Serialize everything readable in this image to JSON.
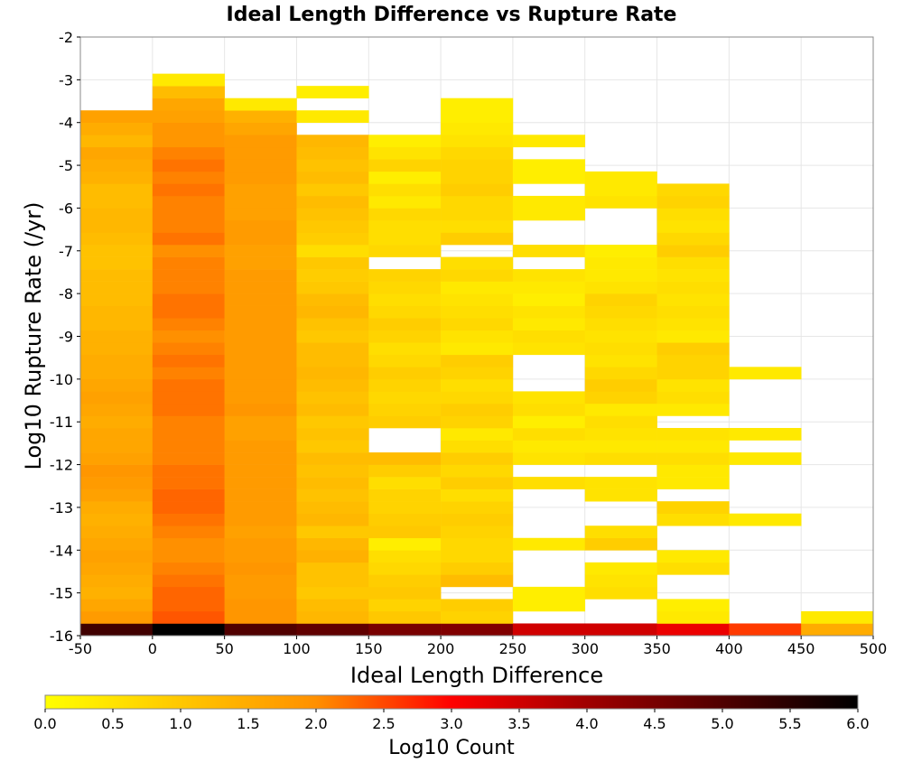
{
  "chart_data": {
    "type": "heatmap",
    "title": "Ideal Length Difference vs Rupture Rate",
    "xlabel": "Ideal Length Difference",
    "ylabel": "Log10 Rupture Rate (/yr)",
    "xlim": [
      -50,
      500
    ],
    "ylim": [
      -16,
      -2
    ],
    "x_ticks": [
      "-50",
      "0",
      "50",
      "100",
      "150",
      "200",
      "250",
      "300",
      "350",
      "400",
      "450",
      "500"
    ],
    "y_ticks": [
      "-2",
      "-3",
      "-4",
      "-5",
      "-6",
      "-7",
      "-8",
      "-9",
      "-10",
      "-11",
      "-12",
      "-13",
      "-14",
      "-15",
      "-16"
    ],
    "x_bin_width": 50,
    "y_bin_height": 0.2857,
    "grid": true,
    "colorbar": {
      "label": "Log10 Count",
      "range": [
        0,
        6
      ],
      "ticks": [
        "0.0",
        "0.5",
        "1.0",
        "1.5",
        "2.0",
        "2.5",
        "3.0",
        "3.5",
        "4.0",
        "4.5",
        "5.0",
        "5.5",
        "6.0"
      ],
      "placement": "bottom"
    },
    "columns": [
      {
        "x": -25,
        "y_start": -16,
        "values": [
          5.2,
          1.8,
          1.6,
          1.4,
          1.5,
          1.6,
          1.7,
          1.6,
          1.5,
          1.4,
          1.5,
          1.7,
          1.8,
          1.9,
          1.7,
          1.6,
          1.6,
          1.5,
          1.6,
          1.7,
          1.6,
          1.5,
          1.5,
          1.4,
          1.4,
          1.3,
          1.3,
          1.2,
          1.2,
          1.2,
          1.1,
          1.1,
          1.2,
          1.3,
          1.3,
          1.2,
          1.2,
          1.4,
          1.5,
          1.6,
          1.3,
          1.5,
          1.7
        ]
      },
      {
        "x": 25,
        "y_start": -16,
        "values": [
          6.0,
          2.4,
          2.3,
          2.3,
          2.2,
          2.1,
          2.0,
          2.0,
          2.1,
          2.2,
          2.3,
          2.3,
          2.2,
          2.2,
          2.1,
          2.1,
          2.1,
          2.1,
          2.2,
          2.2,
          2.2,
          2.1,
          2.2,
          2.1,
          2.0,
          2.1,
          2.2,
          2.2,
          2.1,
          2.1,
          2.1,
          2.0,
          2.2,
          2.1,
          2.1,
          2.1,
          2.2,
          2.1,
          2.2,
          2.1,
          1.9,
          1.9,
          1.7,
          1.6,
          1.2,
          0.4
        ]
      },
      {
        "x": 75,
        "y_start": -16,
        "values": [
          5.0,
          1.9,
          1.9,
          1.8,
          1.8,
          1.9,
          1.8,
          1.8,
          1.7,
          1.8,
          1.8,
          1.8,
          1.8,
          1.8,
          1.8,
          1.8,
          1.7,
          1.7,
          1.9,
          1.8,
          1.8,
          1.8,
          1.8,
          1.8,
          1.8,
          1.8,
          1.8,
          1.8,
          1.8,
          1.8,
          1.7,
          1.7,
          1.8,
          1.8,
          1.7,
          1.7,
          1.7,
          1.8,
          1.8,
          1.8,
          1.8,
          1.6,
          1.4,
          0.4
        ]
      },
      {
        "x": 125,
        "y_start": -16,
        "values": [
          4.8,
          1.3,
          1.2,
          1.0,
          1.1,
          1.1,
          1.4,
          1.3,
          1.0,
          1.3,
          1.2,
          1.1,
          1.2,
          1.1,
          1.2,
          1.0,
          1.1,
          1.0,
          1.2,
          1.1,
          1.2,
          1.3,
          1.2,
          1.2,
          1.0,
          1.1,
          1.3,
          1.2,
          1.0,
          0.9,
          1.0,
          0.6,
          0.9,
          1.0,
          1.1,
          1.2,
          1.0,
          1.2,
          1.1,
          1.2,
          1.3,
          null,
          0.4,
          null,
          0.3
        ]
      },
      {
        "x": 175,
        "y_start": -16,
        "values": [
          4.5,
          1.0,
          0.8,
          1.0,
          0.9,
          0.7,
          0.6,
          0.3,
          1.0,
          0.9,
          0.8,
          0.8,
          0.6,
          0.9,
          1.2,
          null,
          null,
          0.9,
          0.8,
          0.7,
          0.8,
          0.9,
          0.7,
          0.6,
          0.8,
          0.9,
          0.7,
          0.6,
          0.7,
          0.8,
          null,
          0.7,
          0.6,
          0.6,
          0.7,
          0.4,
          0.6,
          0.3,
          0.8,
          0.5,
          0.3
        ]
      },
      {
        "x": 225,
        "y_start": -16,
        "values": [
          4.4,
          0.8,
          0.9,
          null,
          1.2,
          0.9,
          0.7,
          0.7,
          0.8,
          0.9,
          0.8,
          0.6,
          0.9,
          0.7,
          0.9,
          0.6,
          0.4,
          0.8,
          0.9,
          0.7,
          0.6,
          0.8,
          0.9,
          0.4,
          0.5,
          0.7,
          0.6,
          0.5,
          0.4,
          0.7,
          0.6,
          null,
          0.9,
          0.6,
          0.7,
          0.7,
          0.9,
          0.8,
          0.8,
          0.7,
          0.5,
          0.4,
          0.3,
          0.3
        ]
      },
      {
        "x": 275,
        "y_start": -16,
        "values": [
          3.5,
          null,
          0.3,
          0.3,
          null,
          null,
          null,
          0.4,
          null,
          null,
          null,
          null,
          0.6,
          null,
          0.5,
          0.4,
          0.6,
          0.3,
          0.6,
          0.5,
          null,
          null,
          null,
          0.5,
          0.6,
          0.4,
          0.5,
          0.3,
          0.4,
          0.5,
          null,
          0.6,
          null,
          null,
          0.4,
          0.4,
          null,
          0.3,
          0.3,
          null,
          0.4
        ]
      },
      {
        "x": 325,
        "y_start": -16,
        "values": [
          3.5,
          null,
          null,
          0.6,
          0.5,
          0.4,
          null,
          0.9,
          0.6,
          null,
          null,
          0.5,
          0.5,
          null,
          0.6,
          0.4,
          0.5,
          0.6,
          0.4,
          0.8,
          0.9,
          0.7,
          0.5,
          0.6,
          0.5,
          0.6,
          0.7,
          0.8,
          0.5,
          0.4,
          0.4,
          0.3,
          null,
          null,
          null,
          0.5,
          0.4,
          0.4
        ]
      },
      {
        "x": 375,
        "y_start": -16,
        "values": [
          3.2,
          0.4,
          0.3,
          null,
          null,
          0.6,
          0.4,
          null,
          null,
          0.6,
          0.8,
          null,
          0.4,
          0.4,
          0.6,
          0.4,
          0.5,
          null,
          0.4,
          0.6,
          0.5,
          0.8,
          0.8,
          0.9,
          0.4,
          0.5,
          0.6,
          0.5,
          0.6,
          0.5,
          0.6,
          0.9,
          0.7,
          0.5,
          0.6,
          0.8,
          0.7
        ]
      },
      {
        "x": 425,
        "y_start": -16,
        "values": [
          2.6,
          null,
          null,
          null,
          null,
          null,
          null,
          null,
          null,
          0.4,
          null,
          null,
          null,
          null,
          0.4,
          null,
          0.4,
          null,
          null,
          null,
          null,
          0.4
        ]
      },
      {
        "x": 475,
        "y_start": -16,
        "values": [
          1.5,
          0.4
        ]
      }
    ]
  }
}
